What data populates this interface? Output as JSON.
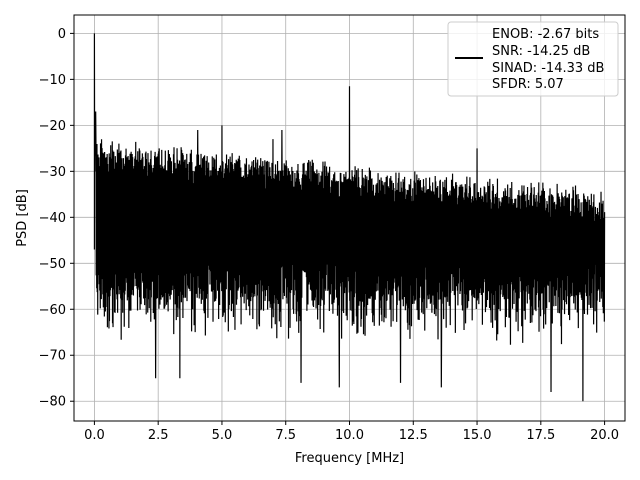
{
  "chart_data": {
    "type": "line",
    "title": "",
    "xlabel": "Frequency [MHz]",
    "ylabel": "PSD [dB]",
    "xlim": [
      -0.8,
      20.8
    ],
    "ylim": [
      -84.3,
      4
    ],
    "xticks": [
      0.0,
      2.5,
      5.0,
      7.5,
      10.0,
      12.5,
      15.0,
      17.5,
      20.0
    ],
    "xtick_labels": [
      "0.0",
      "2.5",
      "5.0",
      "7.5",
      "10.0",
      "12.5",
      "15.0",
      "17.5",
      "20.0"
    ],
    "yticks": [
      0,
      -10,
      -20,
      -30,
      -40,
      -50,
      -60,
      -70,
      -80
    ],
    "ytick_labels": [
      "0",
      "−10",
      "−20",
      "−30",
      "−40",
      "−50",
      "−60",
      "−70",
      "−80"
    ],
    "grid": true,
    "legend_position": "top-right",
    "line_color": "#000000",
    "series": [
      {
        "name": "",
        "description_values": {
          "noise_floor_upper_db": [
            -24,
            -35
          ],
          "noise_floor_lower_db": [
            -80,
            -55
          ]
        },
        "peaks": [
          {
            "x": 0.0,
            "y": 0
          },
          {
            "x": 0.05,
            "y": -17
          },
          {
            "x": 4.05,
            "y": -21
          },
          {
            "x": 5.0,
            "y": -20
          },
          {
            "x": 7.0,
            "y": -23
          },
          {
            "x": 7.35,
            "y": -21
          },
          {
            "x": 10.0,
            "y": -11.5
          },
          {
            "x": 15.0,
            "y": -25
          }
        ],
        "dips": [
          {
            "x": 2.4,
            "y": -75
          },
          {
            "x": 3.35,
            "y": -75
          },
          {
            "x": 8.1,
            "y": -76
          },
          {
            "x": 9.6,
            "y": -77
          },
          {
            "x": 12.0,
            "y": -76
          },
          {
            "x": 13.6,
            "y": -77
          },
          {
            "x": 17.9,
            "y": -78
          },
          {
            "x": 19.15,
            "y": -80
          }
        ]
      }
    ],
    "legend_entries": [
      "ENOB: -2.67 bits",
      "SNR: -14.25 dB",
      "SINAD: -14.33 dB",
      "SFDR: 5.07"
    ]
  }
}
